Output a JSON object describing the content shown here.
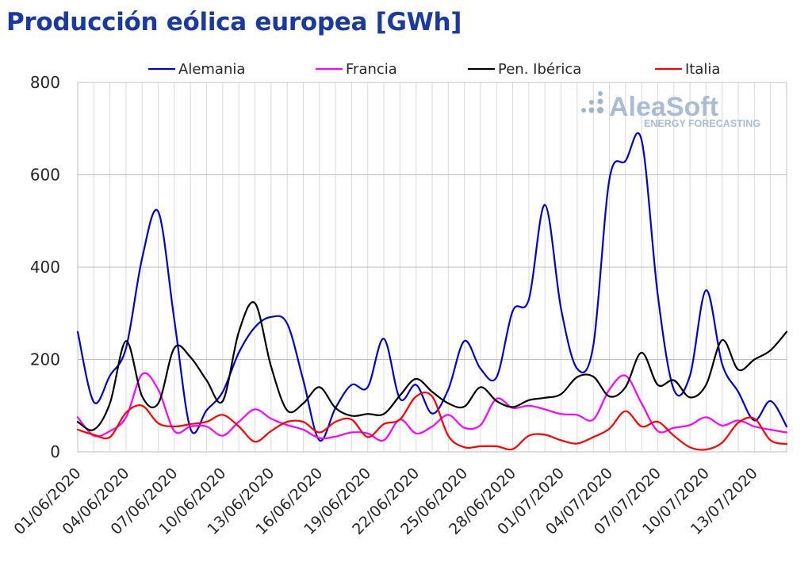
{
  "chart_data": {
    "type": "line",
    "title": "Producción eólica europea [GWh]",
    "xlabel": "",
    "ylabel": "",
    "ylim": [
      0,
      800
    ],
    "yticks": [
      0,
      200,
      400,
      600,
      800
    ],
    "grid": true,
    "legend_position": "top",
    "x": [
      "01/06/2020",
      "02/06/2020",
      "03/06/2020",
      "04/06/2020",
      "05/06/2020",
      "06/06/2020",
      "07/06/2020",
      "08/06/2020",
      "09/06/2020",
      "10/06/2020",
      "11/06/2020",
      "12/06/2020",
      "13/06/2020",
      "14/06/2020",
      "15/06/2020",
      "16/06/2020",
      "17/06/2020",
      "18/06/2020",
      "19/06/2020",
      "20/06/2020",
      "21/06/2020",
      "22/06/2020",
      "23/06/2020",
      "24/06/2020",
      "25/06/2020",
      "26/06/2020",
      "27/06/2020",
      "28/06/2020",
      "29/06/2020",
      "30/06/2020",
      "01/07/2020",
      "02/07/2020",
      "03/07/2020",
      "04/07/2020",
      "05/07/2020",
      "06/07/2020",
      "07/07/2020",
      "08/07/2020",
      "09/07/2020",
      "10/07/2020",
      "11/07/2020",
      "12/07/2020",
      "13/07/2020",
      "14/07/2020",
      "15/07/2020"
    ],
    "x_tick_labels": [
      "01/06/2020",
      "04/06/2020",
      "07/06/2020",
      "10/06/2020",
      "13/06/2020",
      "16/06/2020",
      "19/06/2020",
      "22/06/2020",
      "25/06/2020",
      "28/06/2020",
      "01/07/2020",
      "04/07/2020",
      "07/07/2020",
      "10/07/2020",
      "13/07/2020"
    ],
    "series": [
      {
        "name": "Alemania",
        "color": "#0000cc",
        "values": [
          260,
          108,
          165,
          225,
          420,
          520,
          285,
          50,
          90,
          130,
          215,
          270,
          292,
          278,
          155,
          25,
          95,
          145,
          140,
          245,
          115,
          145,
          83,
          135,
          240,
          180,
          162,
          305,
          330,
          535,
          310,
          180,
          230,
          590,
          630,
          675,
          340,
          135,
          165,
          350,
          190,
          130,
          68,
          110,
          55
        ]
      },
      {
        "name": "Francia",
        "color": "#ff00ff",
        "values": [
          75,
          35,
          45,
          75,
          168,
          135,
          45,
          55,
          55,
          35,
          65,
          92,
          72,
          58,
          48,
          30,
          33,
          42,
          40,
          25,
          70,
          40,
          55,
          80,
          52,
          58,
          115,
          95,
          100,
          92,
          82,
          80,
          70,
          135,
          165,
          105,
          45,
          52,
          58,
          75,
          57,
          68,
          55,
          48,
          42
        ]
      },
      {
        "name": "Pen. Ibérica",
        "color": "#000000",
        "values": [
          65,
          48,
          105,
          240,
          120,
          105,
          225,
          205,
          155,
          110,
          260,
          322,
          185,
          90,
          105,
          140,
          95,
          78,
          82,
          82,
          122,
          158,
          130,
          105,
          98,
          140,
          110,
          97,
          112,
          117,
          125,
          162,
          163,
          120,
          140,
          215,
          145,
          155,
          118,
          145,
          242,
          178,
          200,
          220,
          260
        ]
      },
      {
        "name": "Italia",
        "color": "#ff0000",
        "values": [
          48,
          37,
          32,
          85,
          100,
          62,
          55,
          60,
          65,
          80,
          55,
          22,
          45,
          65,
          65,
          42,
          65,
          70,
          32,
          60,
          70,
          120,
          120,
          35,
          10,
          12,
          12,
          6,
          35,
          37,
          25,
          18,
          32,
          50,
          88,
          55,
          65,
          35,
          10,
          5,
          20,
          63,
          72,
          25,
          17
        ]
      }
    ]
  },
  "branding": {
    "logo_main": "AleaSoft",
    "logo_sub": "ENERGY FORECASTING"
  }
}
